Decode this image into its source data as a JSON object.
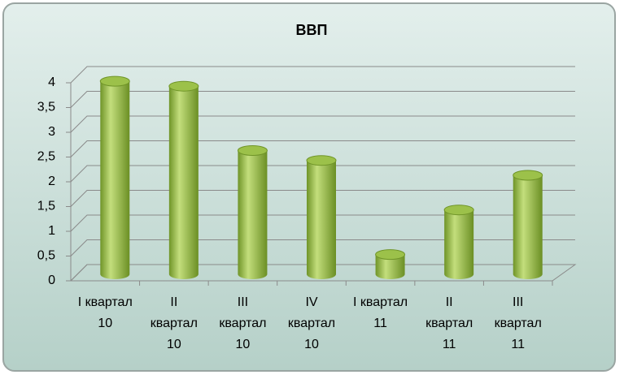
{
  "chart_data": {
    "type": "bar",
    "title": "ВВП",
    "categories": [
      "I квартал 10",
      "II квартал 10",
      "III квартал 10",
      "IV квартал 10",
      "I квартал 11",
      "II квартал 11",
      "III квартал 11"
    ],
    "values": [
      3.9,
      3.8,
      2.5,
      2.3,
      0.4,
      1.3,
      2.0
    ],
    "color": "#8db43c",
    "ylim": [
      0,
      4
    ],
    "yticks": [
      0,
      {
        "value": 0.5,
        "label": "0,5"
      },
      1,
      {
        "value": 1.5,
        "label": "1,5"
      },
      2,
      {
        "value": 2.5,
        "label": "2,5"
      },
      3,
      {
        "value": 3.5,
        "label": "3,5"
      },
      4
    ],
    "grid": true
  }
}
